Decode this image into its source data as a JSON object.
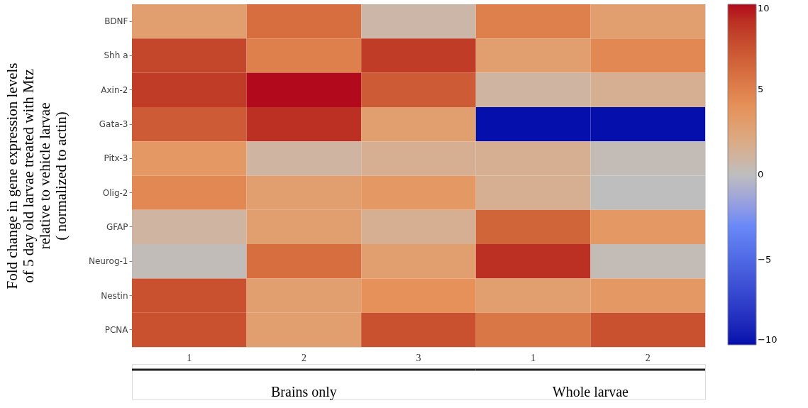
{
  "chart_data": {
    "type": "heatmap",
    "ylabel": "Fold change in gene expression levels\nof 5 day old larvae treated with Mtz\nrelative to vehicle larvae\n( normalized to actin)",
    "categories": [
      "1",
      "2",
      "3",
      "1",
      "2"
    ],
    "y_categories": [
      "BDNF",
      "Shh a",
      "Axin-2",
      "Gata-3",
      "Pitx-3",
      "Olig-2",
      "GFAP",
      "Neurog-1",
      "Nestin",
      "PCNA"
    ],
    "cells": [
      [
        3,
        6,
        0.8,
        5,
        3
      ],
      [
        8,
        5,
        8.5,
        3,
        4.5
      ],
      [
        8.5,
        10,
        7,
        1,
        1.5
      ],
      [
        7,
        9,
        3,
        -10,
        -10
      ],
      [
        3.5,
        1,
        1.5,
        1.5,
        0.3
      ],
      [
        4.5,
        3,
        3.5,
        1.5,
        0
      ],
      [
        1,
        3,
        1.5,
        6.5,
        3.5
      ],
      [
        0.2,
        6,
        3,
        9,
        0.3
      ],
      [
        7.5,
        3,
        4,
        3,
        3.5
      ],
      [
        7.5,
        3,
        7.5,
        5.5,
        7.5
      ]
    ],
    "clim": [
      -10,
      10
    ],
    "cticks": [
      -10,
      -5,
      0,
      5,
      10
    ],
    "annotations": [
      "Brains only",
      "Whole larvae"
    ]
  }
}
